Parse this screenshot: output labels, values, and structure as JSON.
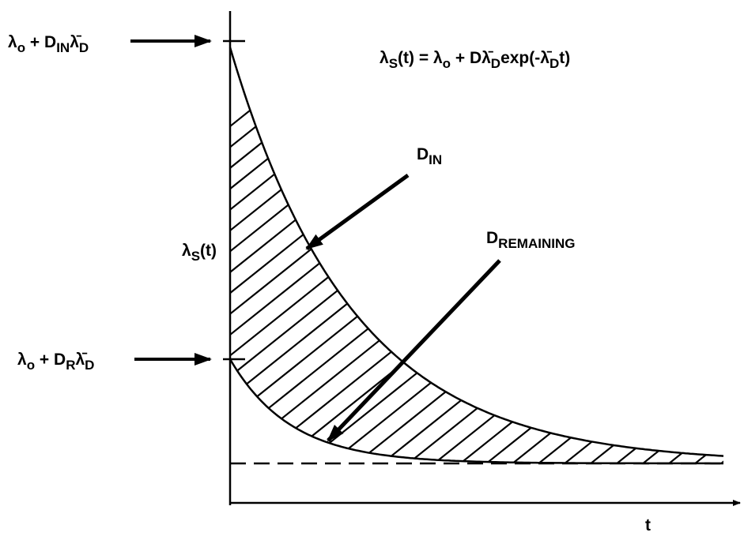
{
  "labels": [
    {
      "segments": [
        {
          "text": "λ",
          "sub": false
        },
        {
          "text": "o",
          "sub": true
        },
        {
          "text": " + D",
          "sub": false
        },
        {
          "text": "IN",
          "sub": true
        },
        {
          "text": "λ̄",
          "sub": false
        },
        {
          "text": "D",
          "sub": true
        }
      ]
    },
    {
      "segments": [
        {
          "text": "λ",
          "sub": false
        },
        {
          "text": "S",
          "sub": true
        },
        {
          "text": "(t) = λ",
          "sub": false
        },
        {
          "text": "o",
          "sub": true
        },
        {
          "text": " + Dλ̄",
          "sub": false
        },
        {
          "text": "D",
          "sub": true
        },
        {
          "text": "exp(-λ̄",
          "sub": false
        },
        {
          "text": "D",
          "sub": true
        },
        {
          "text": "t)",
          "sub": false
        }
      ]
    },
    {
      "segments": [
        {
          "text": "D",
          "sub": false
        },
        {
          "text": "IN",
          "sub": true
        }
      ]
    },
    {
      "segments": [
        {
          "text": "λ",
          "sub": false
        },
        {
          "text": "S",
          "sub": true
        },
        {
          "text": "(t)",
          "sub": false
        }
      ]
    },
    {
      "segments": [
        {
          "text": "D",
          "sub": false
        },
        {
          "text": "REMAINING",
          "sub": true
        }
      ]
    },
    {
      "segments": [
        {
          "text": "λ",
          "sub": false
        },
        {
          "text": "o",
          "sub": true
        },
        {
          "text": " + D",
          "sub": false
        },
        {
          "text": "R",
          "sub": true
        },
        {
          "text": "λ̄",
          "sub": false
        },
        {
          "text": "D",
          "sub": true
        }
      ]
    },
    {
      "segments": [
        {
          "text": "t",
          "sub": false
        }
      ]
    }
  ]
}
